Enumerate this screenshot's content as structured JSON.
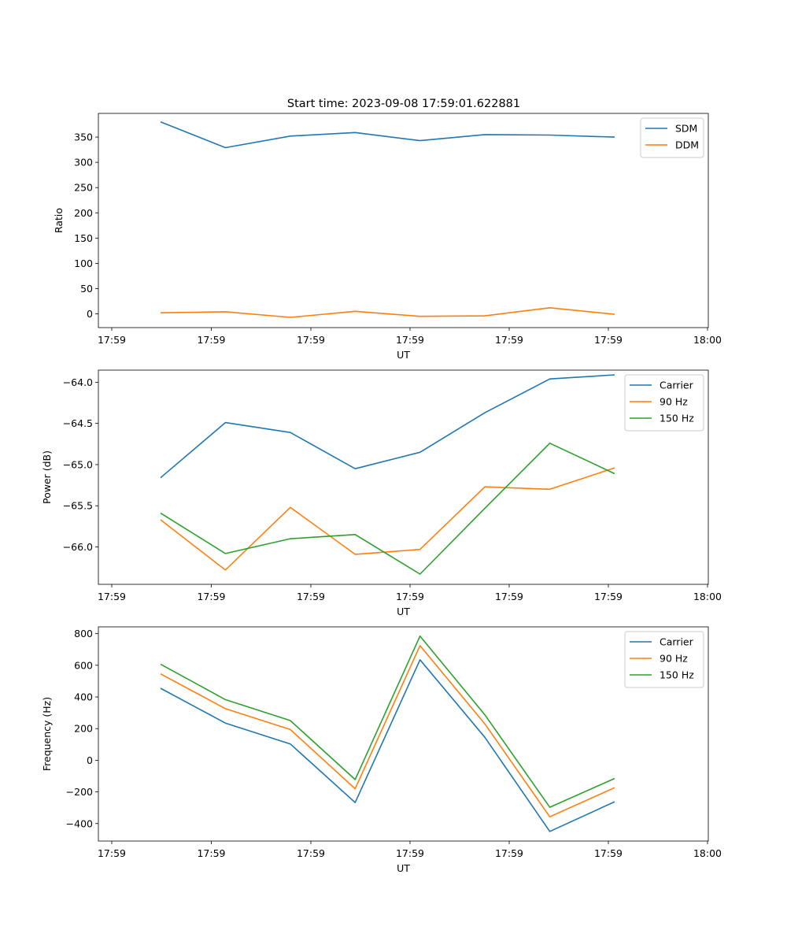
{
  "figure_title": "Start time: 2023-09-08 17:59:01.622881",
  "colors": {
    "blue": "#1f77b4",
    "orange": "#ff7f0e",
    "green": "#2ca02c"
  },
  "chart_data": [
    {
      "type": "line",
      "title": "Start time: 2023-09-08 17:59:01.622881",
      "xlabel": "UT",
      "ylabel": "Ratio",
      "legend_position": "top-right",
      "x_tick_labels": [
        "17:59",
        "17:59",
        "17:59",
        "17:59",
        "17:59",
        "17:59",
        "18:00"
      ],
      "y_ticks": [
        0,
        50,
        100,
        150,
        200,
        250,
        300,
        350
      ],
      "y_tick_labels": [
        "0",
        "50",
        "100",
        "150",
        "200",
        "250",
        "300",
        "350"
      ],
      "ylim": [
        -27.3,
        396.9
      ],
      "x": [
        1,
        2,
        3,
        4,
        5,
        6,
        7,
        8
      ],
      "series": [
        {
          "name": "SDM",
          "color": "#1f77b4",
          "values": [
            380,
            329,
            352,
            359,
            343,
            355,
            354,
            350
          ]
        },
        {
          "name": "DDM",
          "color": "#ff7f0e",
          "values": [
            2,
            4,
            -7,
            5,
            -5,
            -4,
            12,
            -1
          ]
        }
      ]
    },
    {
      "type": "line",
      "xlabel": "UT",
      "ylabel": "Power (dB)",
      "legend_position": "top-right",
      "x_tick_labels": [
        "17:59",
        "17:59",
        "17:59",
        "17:59",
        "17:59",
        "17:59",
        "18:00"
      ],
      "y_ticks": [
        -66.0,
        -65.5,
        -65.0,
        -64.5,
        -64.0
      ],
      "y_tick_labels": [
        "−66.0",
        "−65.5",
        "−65.0",
        "−64.5",
        "−64.0"
      ],
      "ylim": [
        -66.454,
        -63.853
      ],
      "x": [
        1,
        2,
        3,
        4,
        5,
        6,
        7,
        8
      ],
      "series": [
        {
          "name": "Carrier",
          "color": "#1f77b4",
          "values": [
            -65.16,
            -64.49,
            -64.61,
            -65.05,
            -64.85,
            -64.37,
            -63.96,
            -63.91
          ]
        },
        {
          "name": "90 Hz",
          "color": "#ff7f0e",
          "values": [
            -65.67,
            -66.28,
            -65.52,
            -66.09,
            -66.03,
            -65.27,
            -65.3,
            -65.04
          ]
        },
        {
          "name": "150 Hz",
          "color": "#2ca02c",
          "values": [
            -65.59,
            -66.08,
            -65.9,
            -65.85,
            -66.33,
            -65.53,
            -64.74,
            -65.11
          ]
        }
      ]
    },
    {
      "type": "line",
      "xlabel": "UT",
      "ylabel": "Frequency (Hz)",
      "legend_position": "top-right",
      "x_tick_labels": [
        "17:59",
        "17:59",
        "17:59",
        "17:59",
        "17:59",
        "17:59",
        "18:00"
      ],
      "y_ticks": [
        -400,
        -200,
        0,
        200,
        400,
        600,
        800
      ],
      "y_tick_labels": [
        "−400",
        "−200",
        "0",
        "200",
        "400",
        "600",
        "800"
      ],
      "ylim": [
        -510.5,
        843
      ],
      "x": [
        1,
        2,
        3,
        4,
        5,
        6,
        7,
        8
      ],
      "series": [
        {
          "name": "Carrier",
          "color": "#1f77b4",
          "values": [
            455,
            235,
            103,
            -267,
            635,
            145,
            -450,
            -262
          ]
        },
        {
          "name": "90 Hz",
          "color": "#ff7f0e",
          "values": [
            546,
            326,
            194,
            -180,
            724,
            230,
            -357,
            -173
          ]
        },
        {
          "name": "150 Hz",
          "color": "#2ca02c",
          "values": [
            607,
            383,
            251,
            -122,
            785,
            287,
            -297,
            -115
          ]
        }
      ]
    }
  ]
}
